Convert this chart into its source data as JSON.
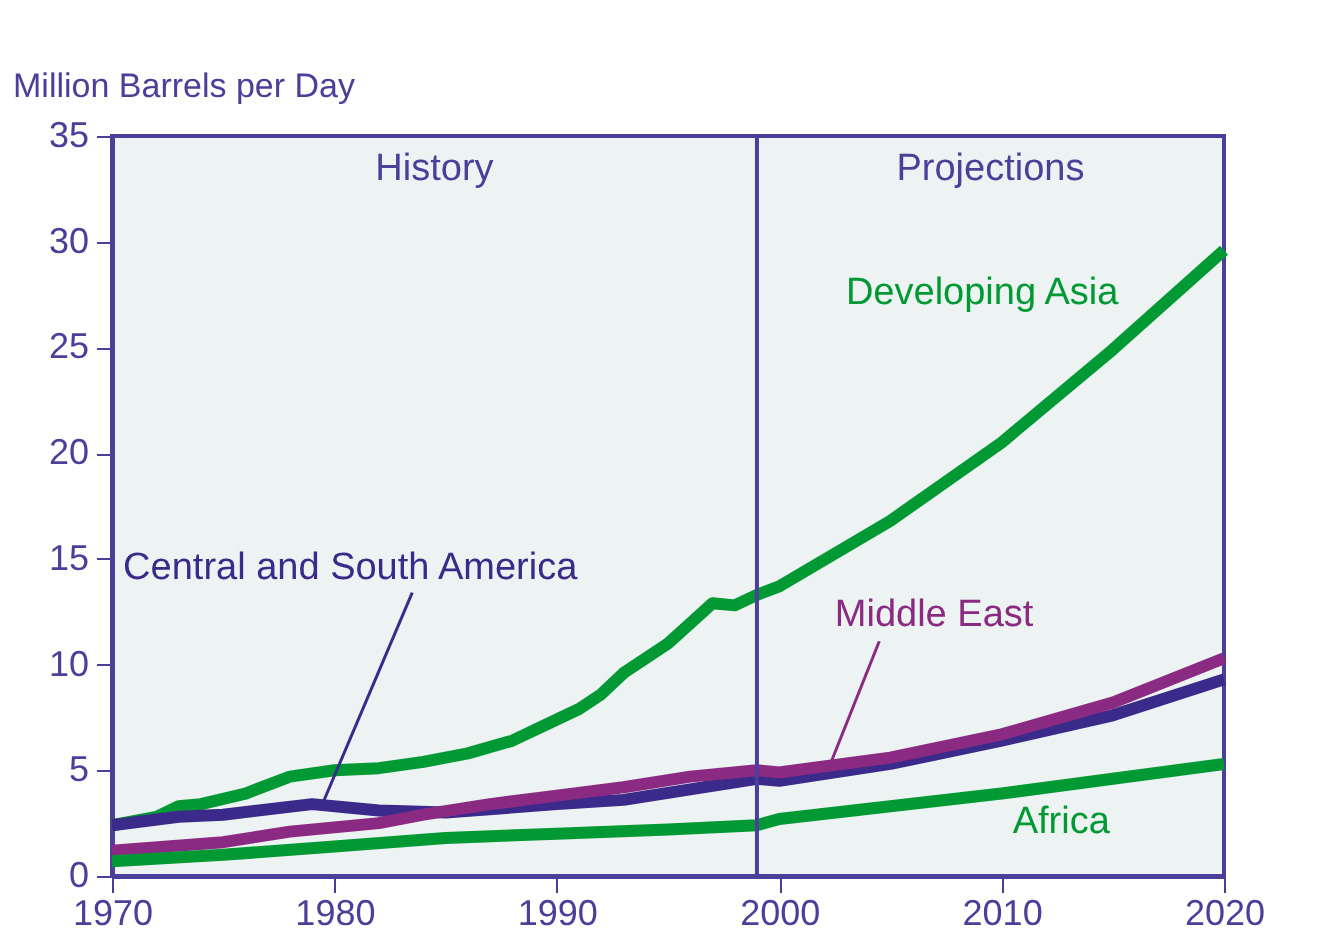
{
  "chart_data": {
    "type": "line",
    "ylabel": "Million Barrels per Day",
    "xlim": [
      1970,
      2020
    ],
    "xticks": [
      1970,
      1980,
      1990,
      2000,
      2010,
      2020
    ],
    "ylim": [
      0,
      35
    ],
    "yticks": [
      0,
      5,
      10,
      15,
      20,
      25,
      30,
      35
    ],
    "grid": false,
    "marker": "none",
    "line_style": "solid",
    "ref_lines": [
      {
        "axis": "x",
        "value": 1999,
        "color": "#4b3f9a"
      }
    ],
    "annotations": [
      "History",
      "Projections"
    ],
    "series": [
      {
        "name": "Developing Asia",
        "color": "#009933",
        "x": [
          1970,
          1972,
          1973,
          1974,
          1976,
          1978,
          1980,
          1982,
          1984,
          1986,
          1988,
          1990,
          1991,
          1992,
          1993,
          1995,
          1997,
          1998,
          1999,
          2000,
          2005,
          2010,
          2015,
          2020
        ],
        "values": [
          2.4,
          2.8,
          3.3,
          3.4,
          3.9,
          4.7,
          5.0,
          5.1,
          5.4,
          5.8,
          6.4,
          7.4,
          7.9,
          8.6,
          9.6,
          11.0,
          12.9,
          12.8,
          13.3,
          13.7,
          16.8,
          20.5,
          24.9,
          29.6
        ]
      },
      {
        "name": "Central and South America",
        "color": "#3a2a8a",
        "x": [
          1970,
          1973,
          1975,
          1979,
          1982,
          1985,
          1990,
          1993,
          1996,
          1999,
          2000,
          2005,
          2010,
          2015,
          2020
        ],
        "values": [
          2.4,
          2.8,
          2.9,
          3.4,
          3.1,
          3.0,
          3.4,
          3.6,
          4.1,
          4.6,
          4.5,
          5.3,
          6.4,
          7.6,
          9.3
        ]
      },
      {
        "name": "Middle East",
        "color": "#8b2a82",
        "x": [
          1970,
          1975,
          1978,
          1982,
          1984,
          1987,
          1990,
          1993,
          1996,
          1999,
          2000,
          2005,
          2010,
          2015,
          2020
        ],
        "values": [
          1.2,
          1.6,
          2.1,
          2.5,
          2.9,
          3.4,
          3.8,
          4.2,
          4.7,
          5.0,
          4.9,
          5.6,
          6.7,
          8.2,
          10.3
        ]
      },
      {
        "name": "Africa",
        "color": "#009933",
        "x": [
          1970,
          1975,
          1980,
          1985,
          1990,
          1995,
          1999,
          2000,
          2005,
          2010,
          2015,
          2020
        ],
        "values": [
          0.7,
          1.0,
          1.4,
          1.8,
          2.0,
          2.2,
          2.4,
          2.7,
          3.3,
          3.9,
          4.6,
          5.3
        ]
      }
    ]
  }
}
